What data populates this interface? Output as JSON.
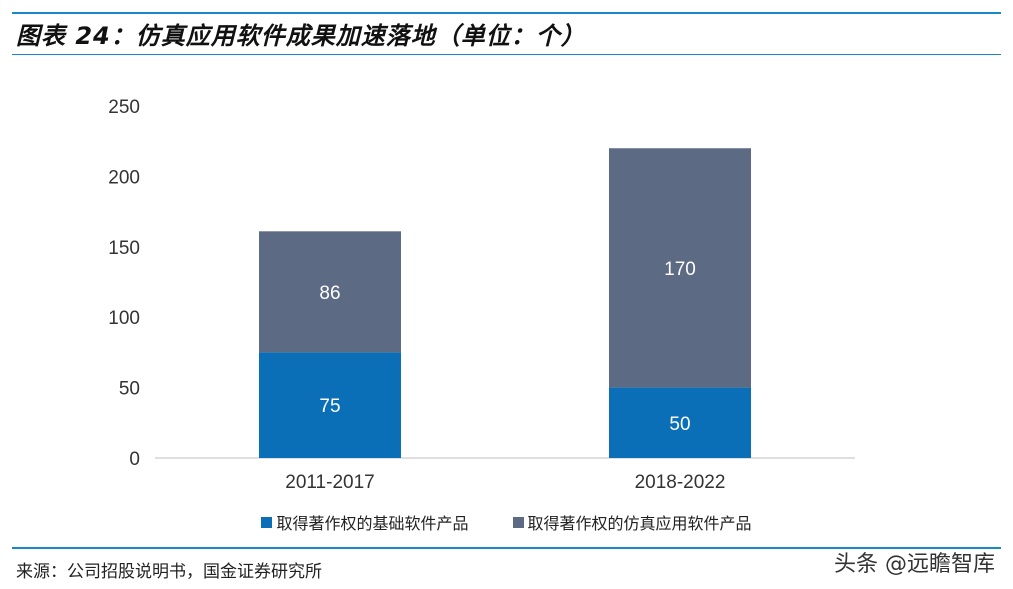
{
  "header": {
    "title": "图表 24：仿真应用软件成果加速落地（单位：个）"
  },
  "footer": {
    "source": "来源：公司招股说明书，国金证券研究所",
    "watermark": "头条 @远瞻智库"
  },
  "colors": {
    "base": "#0b6fb8",
    "sim": "#5c6a84",
    "accent": "#1a87c9"
  },
  "chart_data": {
    "type": "bar",
    "stacked": true,
    "categories": [
      "2011-2017",
      "2018-2022"
    ],
    "series": [
      {
        "name": "取得著作权的基础软件产品",
        "values": [
          75,
          50
        ],
        "color": "#0b6fb8"
      },
      {
        "name": "取得著作权的仿真应用软件产品",
        "values": [
          86,
          170
        ],
        "color": "#5c6a84"
      }
    ],
    "ylim": [
      0,
      250
    ],
    "yticks": [
      "0",
      "50",
      "100",
      "150",
      "200",
      "250"
    ],
    "grid": false,
    "legend": "bottom",
    "data_labels": true
  }
}
